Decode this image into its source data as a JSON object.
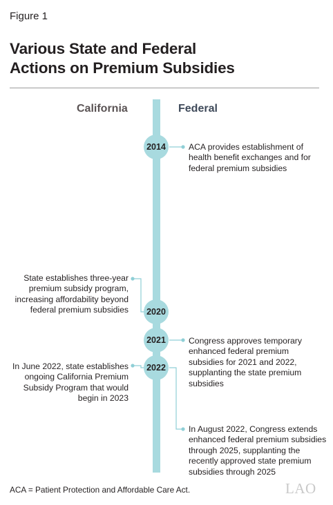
{
  "figure_label": "Figure 1",
  "title": {
    "line1": "Various State and Federal",
    "line2": "Actions on Premium Subsidies"
  },
  "columns": {
    "left": "California",
    "right": "Federal"
  },
  "nodes": [
    {
      "id": "2014",
      "label": "2014"
    },
    {
      "id": "2020",
      "label": "2020"
    },
    {
      "id": "2021",
      "label": "2021"
    },
    {
      "id": "2022",
      "label": "2022"
    }
  ],
  "events": {
    "federal_2014": [
      "ACA provides establishment of",
      "health benefit exchanges and for",
      "federal premium subsidies"
    ],
    "state_2020": [
      "State establishes three-year",
      "premium subsidy program,",
      "increasing affordability beyond",
      "federal premium subsidies"
    ],
    "federal_2021": [
      "Congress approves temporary",
      "enhanced federal premium",
      "subsidies for 2021 and 2022,",
      "supplanting the state premium",
      "subsidies"
    ],
    "state_2022": [
      "In June 2022, state establishes",
      "ongoing California Premium",
      "Subsidy Program that would",
      "begin in 2023"
    ],
    "federal_2022": [
      "In August 2022, Congress extends",
      "enhanced federal premium subsidies",
      "through 2025, supplanting the",
      "recently approved state premium",
      "subsidies through 2025"
    ]
  },
  "footnote": "ACA = Patient Protection and Affordable Care Act.",
  "logo_text": "LAO",
  "colors": {
    "timeline": "#a8dadf",
    "connector": "#8fcfd6",
    "title": "#231f20"
  }
}
